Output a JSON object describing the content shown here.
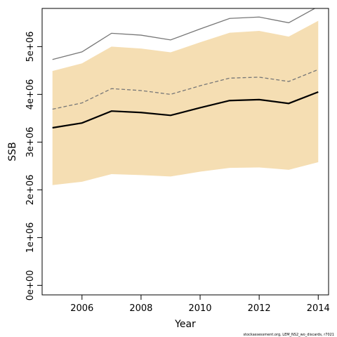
{
  "chart_data": {
    "type": "line",
    "title": "",
    "xlabel": "Year",
    "ylabel": "SSB",
    "x": [
      2005,
      2006,
      2007,
      2008,
      2009,
      2010,
      2011,
      2012,
      2013,
      2014
    ],
    "xlim": [
      2004.65,
      2014.35
    ],
    "ylim": [
      -200000,
      5800000
    ],
    "x_ticks": [
      2006,
      2008,
      2010,
      2012,
      2014
    ],
    "y_ticks": [
      0,
      1000000,
      2000000,
      3000000,
      4000000,
      5000000
    ],
    "y_tick_labels": [
      "0e+00",
      "1e+06",
      "2e+06",
      "3e+06",
      "4e+06",
      "5e+06"
    ],
    "grid": false,
    "colors": {
      "band": "#f5deb3",
      "estimate": "#000000",
      "reference": "#777777"
    },
    "series": [
      {
        "role": "band",
        "lower": [
          2100000,
          2170000,
          2330000,
          2310000,
          2280000,
          2380000,
          2460000,
          2470000,
          2420000,
          2580000
        ],
        "upper": [
          4490000,
          4650000,
          5000000,
          4960000,
          4880000,
          5090000,
          5290000,
          5330000,
          5210000,
          5540000
        ]
      },
      {
        "role": "estimate",
        "values": [
          3300000,
          3400000,
          3650000,
          3620000,
          3560000,
          3720000,
          3870000,
          3890000,
          3810000,
          4050000
        ]
      },
      {
        "role": "reference-dashed",
        "values": [
          3690000,
          3820000,
          4120000,
          4080000,
          4000000,
          4180000,
          4340000,
          4360000,
          4270000,
          4520000
        ]
      },
      {
        "role": "reference-upper",
        "values": [
          4730000,
          4890000,
          5280000,
          5240000,
          5140000,
          5370000,
          5590000,
          5620000,
          5500000,
          5840000
        ]
      }
    ]
  },
  "footnote": "stockassessment.org, LEM_NS2_wo_discards, r7021"
}
